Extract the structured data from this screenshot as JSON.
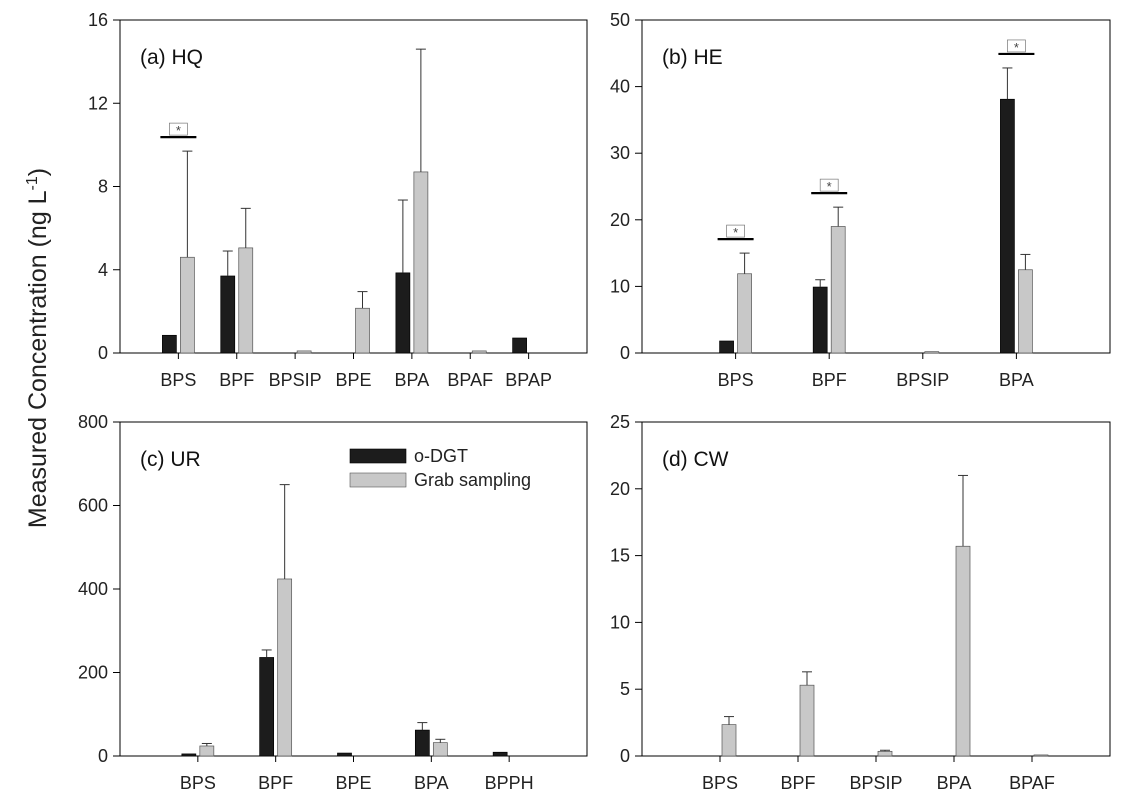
{
  "ylabel": "Measured Concentration (ng L",
  "ylabel_sup": "-1",
  "ylabel_end": ")",
  "legend": {
    "odgt": "o-DGT",
    "grab": "Grab sampling"
  },
  "colors": {
    "odgt": "#1c1c1c",
    "grab": "#c8c8c8"
  },
  "chart_data": [
    {
      "type": "bar",
      "title": "(a) HQ",
      "categories": [
        "BPS",
        "BPF",
        "BPSIP",
        "BPE",
        "BPA",
        "BPAF",
        "BPAP"
      ],
      "ylim": [
        0,
        16
      ],
      "yticks": [
        0,
        4,
        8,
        12,
        16
      ],
      "series": [
        {
          "name": "o-DGT",
          "values": [
            0.85,
            3.7,
            0,
            0,
            3.85,
            0,
            0.72
          ],
          "errors": [
            0,
            1.2,
            0,
            0,
            3.5,
            0,
            0
          ]
        },
        {
          "name": "Grab sampling",
          "values": [
            4.6,
            5.05,
            0.1,
            2.15,
            8.7,
            0.1,
            0
          ],
          "errors": [
            5.1,
            1.9,
            0,
            0.8,
            5.9,
            0,
            0
          ]
        }
      ],
      "significance": [
        {
          "category": "BPS",
          "label": "*"
        }
      ]
    },
    {
      "type": "bar",
      "title": "(b) HE",
      "categories": [
        "BPS",
        "BPF",
        "BPSIP",
        "BPA"
      ],
      "ylim": [
        0,
        50
      ],
      "yticks": [
        0,
        10,
        20,
        30,
        40,
        50
      ],
      "series": [
        {
          "name": "o-DGT",
          "values": [
            1.8,
            9.9,
            0,
            38.1
          ],
          "errors": [
            0,
            1.1,
            0,
            4.7
          ]
        },
        {
          "name": "Grab sampling",
          "values": [
            11.9,
            19.0,
            0.2,
            12.5
          ],
          "errors": [
            3.1,
            2.9,
            0,
            2.3
          ]
        }
      ],
      "significance": [
        {
          "category": "BPS",
          "label": "*"
        },
        {
          "category": "BPF",
          "label": "*"
        },
        {
          "category": "BPA",
          "label": "*"
        }
      ]
    },
    {
      "type": "bar",
      "title": "(c) UR",
      "categories": [
        "BPS",
        "BPF",
        "BPE",
        "BPA",
        "BPPH"
      ],
      "ylim": [
        0,
        800
      ],
      "yticks": [
        0,
        200,
        400,
        600,
        800
      ],
      "series": [
        {
          "name": "o-DGT",
          "values": [
            5,
            236,
            7,
            62,
            9
          ],
          "errors": [
            0,
            18,
            0,
            18,
            0
          ]
        },
        {
          "name": "Grab sampling",
          "values": [
            24,
            424,
            0,
            32,
            0
          ],
          "errors": [
            6,
            226,
            0,
            8,
            0
          ]
        }
      ],
      "significance": []
    },
    {
      "type": "bar",
      "title": "(d) CW",
      "categories": [
        "BPS",
        "BPF",
        "BPSIP",
        "BPA",
        "BPAF"
      ],
      "ylim": [
        0,
        25
      ],
      "yticks": [
        0,
        5,
        10,
        15,
        20,
        25
      ],
      "series": [
        {
          "name": "o-DGT",
          "values": [
            0,
            0,
            0,
            0,
            0
          ],
          "errors": [
            0,
            0,
            0,
            0,
            0
          ]
        },
        {
          "name": "Grab sampling",
          "values": [
            2.35,
            5.3,
            0.35,
            15.7,
            0.08
          ],
          "errors": [
            0.6,
            1.0,
            0.08,
            5.3,
            0
          ]
        }
      ],
      "significance": []
    }
  ]
}
